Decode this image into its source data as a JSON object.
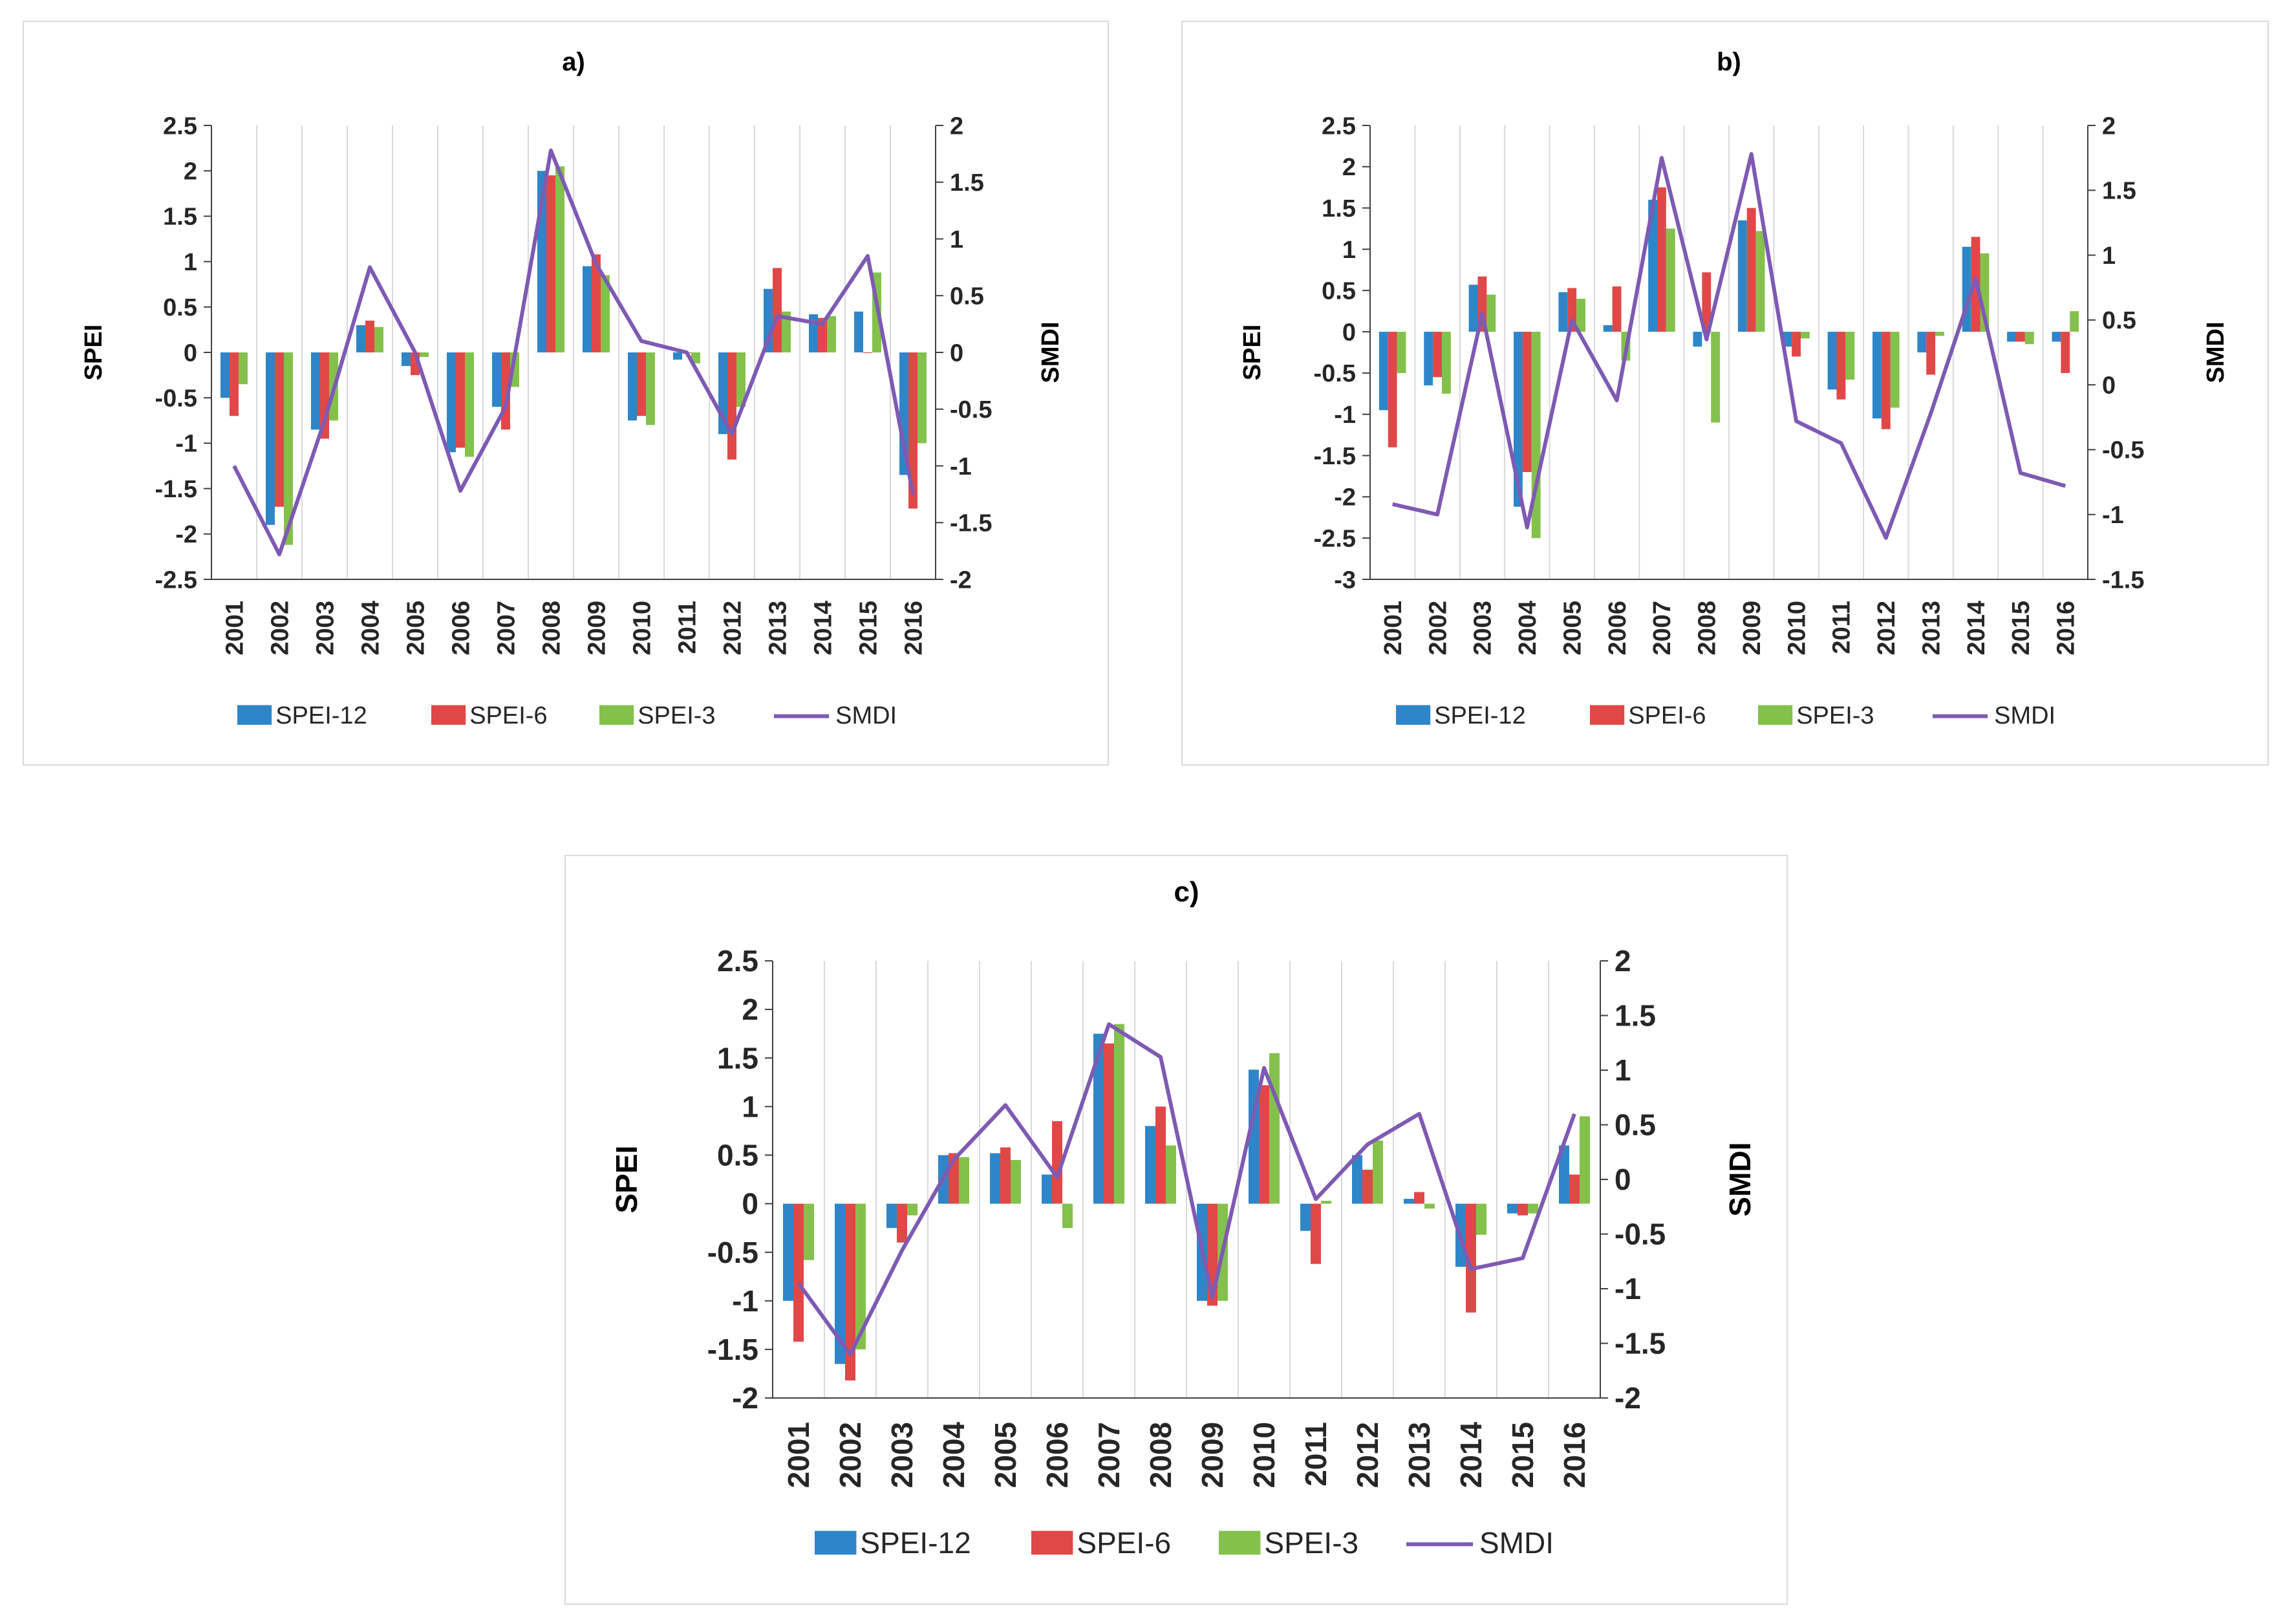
{
  "colors": {
    "SPEI-12": "#2e86c9",
    "SPEI-6": "#e04848",
    "SPEI-3": "#84c14c",
    "SMDI": "#7e5ab3",
    "grid": "#d9d9d9",
    "axis": "#404040"
  },
  "chart_data": [
    {
      "type": "bar",
      "title": "a)",
      "categories": [
        "2001",
        "2002",
        "2003",
        "2004",
        "2005",
        "2006",
        "2007",
        "2008",
        "2009",
        "2010",
        "2011",
        "2012",
        "2013",
        "2014",
        "2015",
        "2016"
      ],
      "ylabel": "SPEI",
      "y2label": "SMDI",
      "ylim": [
        -2.5,
        2.5
      ],
      "yticks": [
        "2.5",
        "2",
        "1.5",
        "1",
        "0.5",
        "0",
        "-0.5",
        "-1",
        "-1.5",
        "-2",
        "-2.5"
      ],
      "y2lim": [
        -2,
        2
      ],
      "y2ticks": [
        "2",
        "1.5",
        "1",
        "0.5",
        "0",
        "-0.5",
        "-1",
        "-1.5",
        "-2"
      ],
      "series": [
        {
          "name": "SPEI-12",
          "type": "bar",
          "values": [
            -0.5,
            -1.9,
            -0.85,
            0.3,
            -0.15,
            -1.1,
            -0.6,
            2.0,
            0.95,
            -0.75,
            -0.08,
            -0.9,
            0.7,
            0.42,
            0.45,
            -1.35
          ]
        },
        {
          "name": "SPEI-6",
          "type": "bar",
          "values": [
            -0.7,
            -1.7,
            -0.95,
            0.35,
            -0.25,
            -1.05,
            -0.85,
            1.95,
            1.08,
            -0.7,
            0.0,
            -1.18,
            0.93,
            0.38,
            0.0,
            -1.72
          ]
        },
        {
          "name": "SPEI-3",
          "type": "bar",
          "values": [
            -0.35,
            -2.12,
            -0.75,
            0.28,
            -0.05,
            -1.15,
            -0.38,
            2.05,
            0.85,
            -0.8,
            -0.12,
            -0.6,
            0.45,
            0.4,
            0.88,
            -1.0
          ]
        },
        {
          "name": "SMDI",
          "type": "line",
          "axis": "secondary",
          "values": [
            -1.0,
            -1.78,
            -0.6,
            0.75,
            0.0,
            -1.22,
            -0.48,
            1.78,
            0.78,
            0.1,
            0.0,
            -0.72,
            0.32,
            0.25,
            0.85,
            -1.25
          ]
        }
      ],
      "legend": [
        "SPEI-12",
        "SPEI-6",
        "SPEI-3",
        "SMDI"
      ]
    },
    {
      "type": "bar",
      "title": "b)",
      "categories": [
        "2001",
        "2002",
        "2003",
        "2004",
        "2005",
        "2006",
        "2007",
        "2008",
        "2009",
        "2010",
        "2011",
        "2012",
        "2013",
        "2014",
        "2015",
        "2016"
      ],
      "ylabel": "SPEI",
      "y2label": "SMDI",
      "ylim": [
        -3,
        2.5
      ],
      "yticks": [
        "2.5",
        "2",
        "1.5",
        "1",
        "0.5",
        "0",
        "-0.5",
        "-1",
        "-1.5",
        "-2",
        "-2.5",
        "-3"
      ],
      "y2lim": [
        -1.5,
        2
      ],
      "y2ticks": [
        "2",
        "1.5",
        "1",
        "0.5",
        "0",
        "-0.5",
        "-1",
        "-1.5"
      ],
      "series": [
        {
          "name": "SPEI-12",
          "type": "bar",
          "values": [
            -0.95,
            -0.65,
            0.57,
            -2.12,
            0.48,
            0.08,
            1.6,
            -0.18,
            1.35,
            -0.18,
            -0.7,
            -1.05,
            -0.25,
            1.03,
            -0.12,
            -0.12
          ]
        },
        {
          "name": "SPEI-6",
          "type": "bar",
          "values": [
            -1.4,
            -0.55,
            0.67,
            -1.7,
            0.53,
            0.55,
            1.75,
            0.72,
            1.5,
            -0.3,
            -0.82,
            -1.18,
            -0.52,
            1.15,
            -0.12,
            -0.5
          ]
        },
        {
          "name": "SPEI-3",
          "type": "bar",
          "values": [
            -0.5,
            -0.75,
            0.45,
            -2.5,
            0.4,
            -0.35,
            1.25,
            -1.1,
            1.22,
            -0.08,
            -0.58,
            -0.92,
            -0.05,
            0.95,
            -0.15,
            0.25
          ]
        },
        {
          "name": "SMDI",
          "type": "line",
          "axis": "secondary",
          "values": [
            -0.92,
            -1.0,
            0.55,
            -1.1,
            0.5,
            -0.12,
            1.75,
            0.35,
            1.78,
            -0.28,
            -0.45,
            -1.18,
            -0.22,
            0.82,
            -0.68,
            -0.78
          ]
        }
      ],
      "legend": [
        "SPEI-12",
        "SPEI-6",
        "SPEI-3",
        "SMDI"
      ]
    },
    {
      "type": "bar",
      "title": "c)",
      "categories": [
        "2001",
        "2002",
        "2003",
        "2004",
        "2005",
        "2006",
        "2007",
        "2008",
        "2009",
        "2010",
        "2011",
        "2012",
        "2013",
        "2014",
        "2015",
        "2016"
      ],
      "ylabel": "SPEI",
      "y2label": "SMDI",
      "ylim": [
        -2,
        2.5
      ],
      "yticks": [
        "2.5",
        "2",
        "1.5",
        "1",
        "0.5",
        "0",
        "-0.5",
        "-1",
        "-1.5",
        "-2"
      ],
      "y2lim": [
        -2,
        2
      ],
      "y2ticks": [
        "2",
        "1.5",
        "1",
        "0.5",
        "0",
        "-0.5",
        "-1",
        "-1.5",
        "-2"
      ],
      "series": [
        {
          "name": "SPEI-12",
          "type": "bar",
          "values": [
            -1.0,
            -1.65,
            -0.25,
            0.5,
            0.52,
            0.3,
            1.75,
            0.8,
            -1.0,
            1.38,
            -0.28,
            0.5,
            0.05,
            -0.65,
            -0.1,
            0.6
          ]
        },
        {
          "name": "SPEI-6",
          "type": "bar",
          "values": [
            -1.42,
            -1.82,
            -0.4,
            0.52,
            0.58,
            0.85,
            1.65,
            1.0,
            -1.05,
            1.22,
            -0.62,
            0.35,
            0.12,
            -1.12,
            -0.12,
            0.3
          ]
        },
        {
          "name": "SPEI-3",
          "type": "bar",
          "values": [
            -0.58,
            -1.5,
            -0.12,
            0.48,
            0.45,
            -0.25,
            1.85,
            0.6,
            -1.0,
            1.55,
            0.03,
            0.65,
            -0.05,
            -0.32,
            -0.1,
            0.9
          ]
        },
        {
          "name": "SMDI",
          "type": "line",
          "axis": "secondary",
          "values": [
            -0.95,
            -1.6,
            -0.65,
            0.18,
            0.68,
            0.02,
            1.42,
            1.12,
            -1.08,
            1.02,
            -0.18,
            0.32,
            0.6,
            -0.82,
            -0.72,
            0.6
          ]
        }
      ],
      "legend": [
        "SPEI-12",
        "SPEI-6",
        "SPEI-3",
        "SMDI"
      ]
    }
  ]
}
